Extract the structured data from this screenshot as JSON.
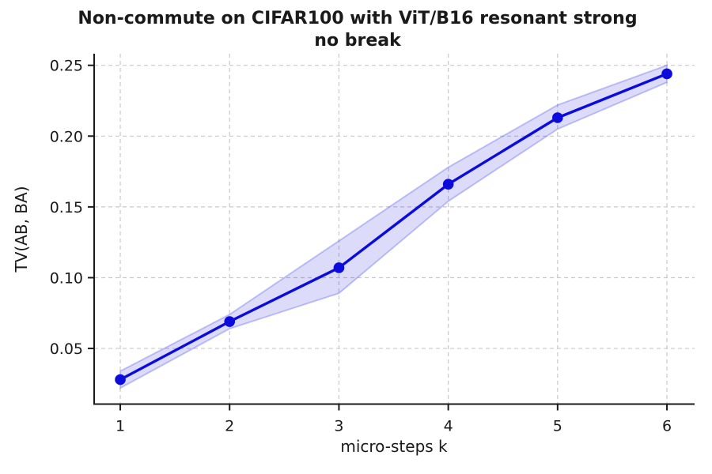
{
  "figure": {
    "title_line1": "Non-commute on CIFAR100 with ViT/B16 resonant strong",
    "title_line2": "no break",
    "xlabel": "micro-steps k",
    "ylabel": "TV(AB, BA)"
  },
  "chart_data": {
    "type": "line",
    "title": "Non-commute on CIFAR100 with ViT/B16 resonant strong no break",
    "xlabel": "micro-steps k",
    "ylabel": "TV(AB, BA)",
    "x": [
      1,
      2,
      3,
      4,
      5,
      6
    ],
    "series": [
      {
        "name": "TV(AB, BA)",
        "values": [
          0.028,
          0.069,
          0.107,
          0.166,
          0.213,
          0.244
        ],
        "band_lower": [
          0.022,
          0.064,
          0.089,
          0.154,
          0.205,
          0.238
        ],
        "band_upper": [
          0.034,
          0.074,
          0.126,
          0.178,
          0.222,
          0.25
        ]
      }
    ],
    "xticks": [
      1,
      2,
      3,
      4,
      5,
      6
    ],
    "xtick_labels": [
      "1",
      "2",
      "3",
      "4",
      "5",
      "6"
    ],
    "yticks": [
      0.05,
      0.1,
      0.15,
      0.2,
      0.25
    ],
    "ytick_labels": [
      "0.05",
      "0.10",
      "0.15",
      "0.20",
      "0.25"
    ],
    "xlim": [
      0.761,
      6.253
    ],
    "ylim": [
      0.0107,
      0.2582
    ],
    "grid": true,
    "legend": false
  },
  "style": {
    "line_color": "#0b0bdb",
    "marker_color": "#0b0bdb",
    "band_fill": "rgba(35, 35, 225, 0.16)",
    "band_edge": "rgba(55, 55, 230, 0.28)",
    "grid_color": "#c9c9c9",
    "spine_color": "#1a1a1a",
    "text_color": "#1a1a1a"
  }
}
